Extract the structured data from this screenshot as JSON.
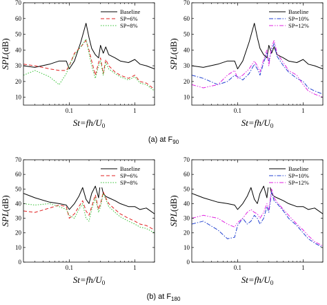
{
  "chart_data": [
    {
      "type": "line",
      "panel": "(a) left",
      "x_scale": "log",
      "xlim": [
        0.02,
        2
      ],
      "ylim": [
        5,
        70
      ],
      "xlabel": "St=fh/U0",
      "ylabel": "SPL(dB)",
      "xticks": [
        {
          "value": 0.1,
          "label": "0.1"
        },
        {
          "value": 1,
          "label": "1"
        }
      ],
      "yticks": [
        10,
        20,
        30,
        40,
        50,
        60,
        70
      ],
      "legend_position": "top-right",
      "series": [
        {
          "name": "Baseline",
          "color": "#000000",
          "dash": "solid",
          "x": [
            0.02,
            0.03,
            0.05,
            0.07,
            0.09,
            0.1,
            0.12,
            0.15,
            0.18,
            0.2,
            0.22,
            0.25,
            0.28,
            0.3,
            0.33,
            0.36,
            0.4,
            0.5,
            0.6,
            0.8,
            1.0,
            1.2,
            1.5,
            2.0
          ],
          "y": [
            30,
            29,
            31,
            33,
            33,
            28,
            33,
            45,
            57,
            48,
            41,
            37,
            35,
            43,
            38,
            42,
            37,
            35,
            33,
            32,
            34,
            31,
            30,
            28
          ]
        },
        {
          "name": "SP=6%",
          "color": "#e02020",
          "dash": "dashed",
          "x": [
            0.02,
            0.03,
            0.05,
            0.07,
            0.09,
            0.1,
            0.12,
            0.15,
            0.18,
            0.2,
            0.22,
            0.25,
            0.28,
            0.3,
            0.33,
            0.36,
            0.4,
            0.5,
            0.6,
            0.8,
            1.0,
            1.2,
            1.5,
            2.0
          ],
          "y": [
            31,
            30,
            28,
            27,
            27,
            30,
            38,
            42,
            46,
            40,
            33,
            24,
            32,
            35,
            25,
            34,
            30,
            26,
            24,
            22,
            24,
            20,
            19,
            15
          ]
        },
        {
          "name": "SP=8%",
          "color": "#30c030",
          "dash": "dotted",
          "x": [
            0.02,
            0.03,
            0.05,
            0.07,
            0.09,
            0.1,
            0.12,
            0.15,
            0.18,
            0.2,
            0.22,
            0.25,
            0.28,
            0.3,
            0.33,
            0.36,
            0.4,
            0.5,
            0.6,
            0.8,
            1.0,
            1.2,
            1.5,
            2.0
          ],
          "y": [
            24,
            27,
            23,
            18,
            25,
            30,
            37,
            42,
            47,
            38,
            30,
            22,
            30,
            33,
            24,
            32,
            28,
            25,
            23,
            21,
            23,
            19,
            18,
            14
          ]
        }
      ]
    },
    {
      "type": "line",
      "panel": "(a) right",
      "x_scale": "log",
      "xlim": [
        0.02,
        2
      ],
      "ylim": [
        5,
        70
      ],
      "xlabel": "St=fh/U0",
      "ylabel": "SPL(dB)",
      "xticks": [
        {
          "value": 0.1,
          "label": "0.1"
        },
        {
          "value": 1,
          "label": "1"
        }
      ],
      "yticks": [
        10,
        20,
        30,
        40,
        50,
        60,
        70
      ],
      "legend_position": "top-right",
      "series": [
        {
          "name": "Baseline",
          "color": "#000000",
          "dash": "solid",
          "x": [
            0.02,
            0.03,
            0.05,
            0.07,
            0.09,
            0.1,
            0.12,
            0.15,
            0.18,
            0.2,
            0.22,
            0.25,
            0.28,
            0.3,
            0.33,
            0.36,
            0.4,
            0.5,
            0.6,
            0.8,
            1.0,
            1.2,
            1.5,
            2.0
          ],
          "y": [
            30,
            29,
            31,
            33,
            33,
            28,
            33,
            45,
            57,
            48,
            41,
            37,
            35,
            43,
            38,
            42,
            37,
            35,
            33,
            32,
            34,
            31,
            30,
            28
          ]
        },
        {
          "name": "SP=10%",
          "color": "#2040d0",
          "dash": "dashdot",
          "x": [
            0.02,
            0.03,
            0.05,
            0.07,
            0.09,
            0.1,
            0.12,
            0.15,
            0.18,
            0.2,
            0.22,
            0.25,
            0.28,
            0.3,
            0.33,
            0.36,
            0.4,
            0.5,
            0.6,
            0.8,
            1.0,
            1.2,
            1.5,
            2.0
          ],
          "y": [
            24,
            22,
            18,
            20,
            24,
            23,
            21,
            25,
            31,
            28,
            24,
            32,
            38,
            33,
            40,
            44,
            36,
            30,
            26,
            22,
            20,
            16,
            14,
            12
          ]
        },
        {
          "name": "SP=12%",
          "color": "#e020e0",
          "dash": "dashdotdot",
          "x": [
            0.02,
            0.03,
            0.05,
            0.07,
            0.09,
            0.1,
            0.12,
            0.15,
            0.18,
            0.2,
            0.22,
            0.25,
            0.28,
            0.3,
            0.33,
            0.36,
            0.4,
            0.5,
            0.6,
            0.8,
            1.0,
            1.2,
            1.5,
            2.0
          ],
          "y": [
            18,
            16,
            18,
            24,
            27,
            22,
            24,
            28,
            33,
            30,
            26,
            34,
            40,
            30,
            42,
            46,
            38,
            32,
            27,
            24,
            18,
            14,
            12,
            10
          ]
        }
      ]
    },
    {
      "type": "line",
      "panel": "(b) left",
      "x_scale": "log",
      "xlim": [
        0.02,
        2
      ],
      "ylim": [
        0,
        70
      ],
      "xlabel": "St=fh/U0",
      "ylabel": "SPL(dB)",
      "xticks": [
        {
          "value": 0.1,
          "label": "0.1"
        },
        {
          "value": 1,
          "label": "1"
        }
      ],
      "yticks": [
        0,
        10,
        20,
        30,
        40,
        50,
        60,
        70
      ],
      "legend_position": "top-right",
      "series": [
        {
          "name": "Baseline",
          "color": "#000000",
          "dash": "solid",
          "x": [
            0.02,
            0.03,
            0.05,
            0.07,
            0.09,
            0.1,
            0.12,
            0.14,
            0.16,
            0.18,
            0.2,
            0.22,
            0.25,
            0.28,
            0.3,
            0.33,
            0.36,
            0.4,
            0.5,
            0.6,
            0.8,
            1.0,
            1.2,
            1.5,
            2.0
          ],
          "y": [
            47,
            44,
            41,
            40,
            39,
            36,
            40,
            45,
            51,
            43,
            40,
            47,
            52,
            44,
            55,
            47,
            45,
            44,
            42,
            40,
            38,
            38,
            36,
            37,
            33
          ]
        },
        {
          "name": "SP=6%",
          "color": "#e02020",
          "dash": "dashed",
          "x": [
            0.02,
            0.03,
            0.05,
            0.07,
            0.09,
            0.1,
            0.12,
            0.14,
            0.16,
            0.18,
            0.2,
            0.22,
            0.25,
            0.28,
            0.3,
            0.33,
            0.36,
            0.4,
            0.5,
            0.6,
            0.8,
            1.0,
            1.2,
            1.5,
            2.0
          ],
          "y": [
            35,
            34,
            37,
            39,
            38,
            30,
            33,
            38,
            42,
            35,
            32,
            38,
            46,
            36,
            40,
            48,
            44,
            40,
            36,
            33,
            30,
            28,
            26,
            25,
            22
          ]
        },
        {
          "name": "SP=8%",
          "color": "#30c030",
          "dash": "dotted",
          "x": [
            0.02,
            0.03,
            0.05,
            0.07,
            0.09,
            0.1,
            0.12,
            0.14,
            0.16,
            0.18,
            0.2,
            0.22,
            0.25,
            0.28,
            0.3,
            0.33,
            0.36,
            0.4,
            0.5,
            0.6,
            0.8,
            1.0,
            1.2,
            1.5,
            2.0
          ],
          "y": [
            40,
            39,
            40,
            38,
            36,
            32,
            30,
            36,
            40,
            30,
            28,
            36,
            44,
            34,
            38,
            47,
            43,
            38,
            34,
            31,
            28,
            26,
            24,
            23,
            20
          ]
        }
      ]
    },
    {
      "type": "line",
      "panel": "(b) right",
      "x_scale": "log",
      "xlim": [
        0.02,
        2
      ],
      "ylim": [
        0,
        70
      ],
      "xlabel": "St=fh/U0",
      "ylabel": "SPL(dB)",
      "xticks": [
        {
          "value": 0.1,
          "label": "0.1"
        },
        {
          "value": 1,
          "label": "1"
        }
      ],
      "yticks": [
        0,
        10,
        20,
        30,
        40,
        50,
        60,
        70
      ],
      "legend_position": "top-right",
      "series": [
        {
          "name": "Baseline",
          "color": "#000000",
          "dash": "solid",
          "x": [
            0.02,
            0.03,
            0.05,
            0.07,
            0.09,
            0.1,
            0.12,
            0.14,
            0.16,
            0.18,
            0.2,
            0.22,
            0.25,
            0.28,
            0.3,
            0.33,
            0.36,
            0.4,
            0.5,
            0.6,
            0.8,
            1.0,
            1.2,
            1.5,
            2.0
          ],
          "y": [
            47,
            44,
            41,
            40,
            39,
            36,
            40,
            45,
            51,
            43,
            40,
            47,
            52,
            44,
            55,
            47,
            45,
            44,
            42,
            40,
            38,
            38,
            36,
            37,
            33
          ]
        },
        {
          "name": "SP=10%",
          "color": "#2040d0",
          "dash": "dashdot",
          "x": [
            0.02,
            0.03,
            0.05,
            0.07,
            0.09,
            0.1,
            0.12,
            0.14,
            0.16,
            0.18,
            0.2,
            0.22,
            0.25,
            0.28,
            0.3,
            0.33,
            0.36,
            0.4,
            0.5,
            0.6,
            0.8,
            1.0,
            1.2,
            1.5,
            2.0
          ],
          "y": [
            26,
            28,
            22,
            16,
            17,
            25,
            30,
            26,
            28,
            32,
            30,
            26,
            30,
            38,
            34,
            48,
            42,
            40,
            35,
            30,
            25,
            20,
            16,
            13,
            10
          ]
        },
        {
          "name": "SP=12%",
          "color": "#e020e0",
          "dash": "dashdotdot",
          "x": [
            0.02,
            0.03,
            0.05,
            0.07,
            0.09,
            0.1,
            0.12,
            0.14,
            0.16,
            0.18,
            0.2,
            0.22,
            0.25,
            0.28,
            0.3,
            0.33,
            0.36,
            0.4,
            0.5,
            0.6,
            0.8,
            1.0,
            1.2,
            1.5,
            2.0
          ],
          "y": [
            30,
            32,
            30,
            26,
            24,
            27,
            30,
            34,
            36,
            34,
            33,
            30,
            34,
            40,
            36,
            50,
            44,
            41,
            36,
            32,
            26,
            22,
            18,
            14,
            11
          ]
        }
      ]
    }
  ],
  "captions": [
    {
      "prefix": "(a) at F",
      "sub": "90"
    },
    {
      "prefix": "(b) at F",
      "sub": "180"
    }
  ]
}
